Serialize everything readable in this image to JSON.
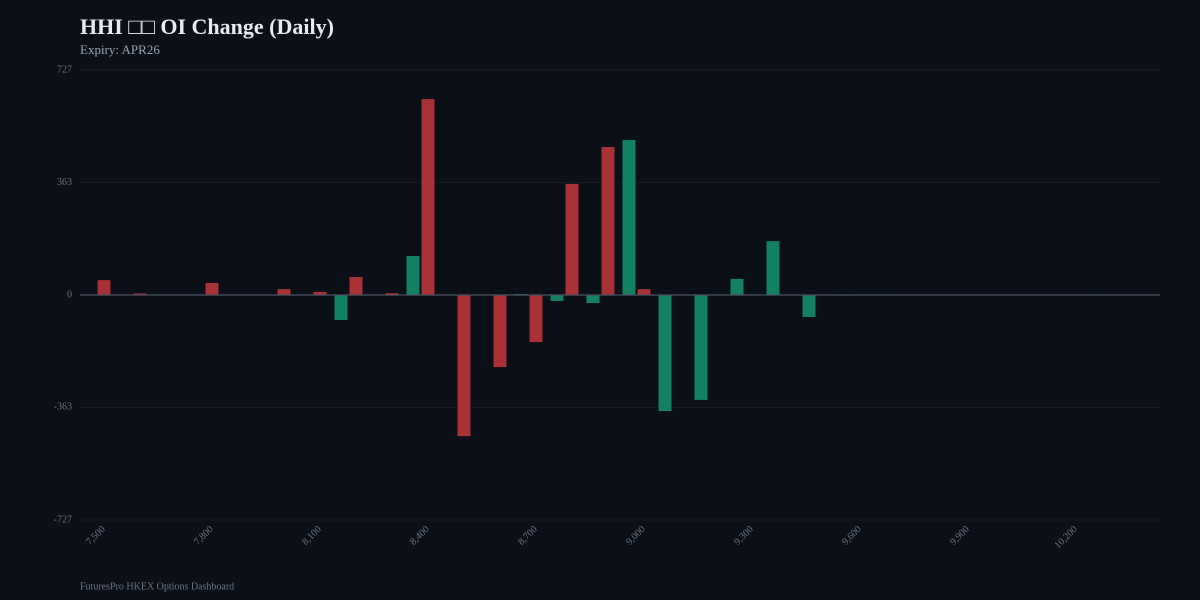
{
  "chart_data": {
    "type": "bar",
    "title": "HHI □□ OI Change (Daily)",
    "subtitle": "Expiry: APR26",
    "footer": "FuturesPro HKEX Options Dashboard",
    "categories": [
      "7,500",
      null,
      null,
      "7,800",
      null,
      null,
      "8,100",
      null,
      null,
      "8,400",
      null,
      null,
      "8,700",
      null,
      null,
      "9,000",
      null,
      null,
      "9,300",
      null,
      null,
      "9,600",
      null,
      null,
      "9,900",
      null,
      null,
      "10,200",
      null,
      null
    ],
    "series": [
      {
        "color": "#a83236",
        "values": [
          48,
          5,
          0,
          39,
          0,
          19,
          10,
          58,
          6,
          633,
          -456,
          -233,
          -152,
          359,
          478,
          19,
          0,
          0,
          0,
          0,
          0,
          0,
          0,
          0,
          0,
          0,
          0,
          0,
          0,
          0
        ]
      },
      {
        "color": "#138062",
        "values": [
          0,
          0,
          0,
          0,
          0,
          0,
          -81,
          0,
          126,
          0,
          0,
          3,
          -19,
          -26,
          501,
          -375,
          -339,
          52,
          174,
          -71,
          -2,
          2,
          0,
          0,
          0,
          0,
          0,
          2,
          0,
          0
        ]
      }
    ],
    "ylim": [
      -727,
      727
    ],
    "yticks": [
      -727,
      -363,
      0,
      363,
      727
    ],
    "grid": true
  }
}
